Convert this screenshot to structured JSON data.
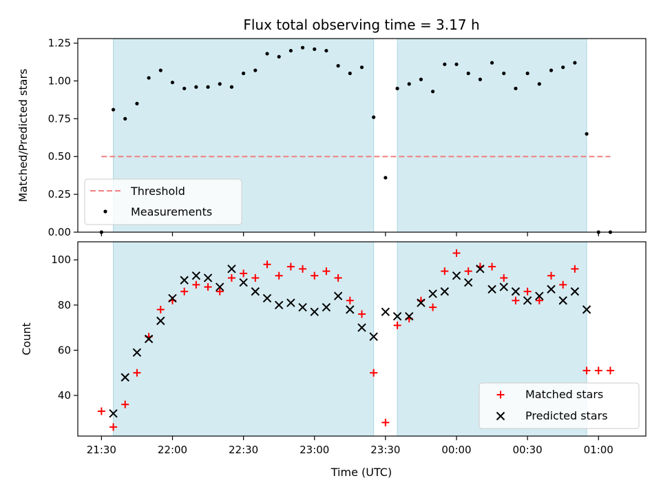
{
  "chart_data": {
    "title": "Flux total observing time = 3.17 h",
    "xlabel": "Time (UTC)",
    "x_unit": "minutes",
    "xlim": [
      "21:20",
      "01:20"
    ],
    "xtick_labels": [
      "21:30",
      "22:00",
      "22:30",
      "23:00",
      "23:30",
      "00:00",
      "00:30",
      "01:00"
    ],
    "shaded_intervals": [
      [
        "21:35",
        "23:25"
      ],
      [
        "23:35",
        "00:55"
      ]
    ],
    "shade_color": "#d4ebf1",
    "panels": [
      {
        "type": "scatter",
        "ylabel": "Matched/Predicted stars",
        "ylim": [
          0,
          1.28
        ],
        "yticks": [
          0.0,
          0.25,
          0.5,
          0.75,
          1.0,
          1.25
        ],
        "ytick_labels": [
          "0.00",
          "0.25",
          "0.50",
          "0.75",
          "1.00",
          "1.25"
        ],
        "threshold": {
          "name": "Threshold",
          "value": 0.5,
          "x_range": [
            "21:30",
            "01:05"
          ],
          "color": "#f08080"
        },
        "series": [
          {
            "name": "Measurements",
            "marker": "dot",
            "color": "#000000",
            "x": [
              "21:30",
              "21:35",
              "21:40",
              "21:45",
              "21:50",
              "21:55",
              "22:00",
              "22:05",
              "22:10",
              "22:15",
              "22:20",
              "22:25",
              "22:30",
              "22:35",
              "22:40",
              "22:45",
              "22:50",
              "22:55",
              "23:00",
              "23:05",
              "23:10",
              "23:15",
              "23:20",
              "23:25",
              "23:30",
              "23:35",
              "23:40",
              "23:45",
              "23:50",
              "23:55",
              "00:00",
              "00:05",
              "00:10",
              "00:15",
              "00:20",
              "00:25",
              "00:30",
              "00:35",
              "00:40",
              "00:45",
              "00:50",
              "00:55",
              "01:00",
              "01:05"
            ],
            "y": [
              0.0,
              0.81,
              0.75,
              0.85,
              1.02,
              1.07,
              0.99,
              0.95,
              0.96,
              0.96,
              0.98,
              0.96,
              1.05,
              1.07,
              1.18,
              1.16,
              1.2,
              1.22,
              1.21,
              1.2,
              1.1,
              1.05,
              1.09,
              0.76,
              0.36,
              0.95,
              0.98,
              1.01,
              0.93,
              1.11,
              1.11,
              1.05,
              1.01,
              1.12,
              1.05,
              0.95,
              1.05,
              0.98,
              1.07,
              1.09,
              1.12,
              0.65,
              0.0,
              0.0
            ]
          }
        ],
        "legend": {
          "position": "lower left",
          "entries": [
            "Threshold",
            "Measurements"
          ]
        }
      },
      {
        "type": "scatter",
        "ylabel": "Count",
        "ylim": [
          22,
          108
        ],
        "yticks": [
          40,
          60,
          80,
          100
        ],
        "ytick_labels": [
          "40",
          "60",
          "80",
          "100"
        ],
        "series": [
          {
            "name": "Matched stars",
            "marker": "plus",
            "color": "#ff0000",
            "x": [
              "21:30",
              "21:35",
              "21:40",
              "21:45",
              "21:50",
              "21:55",
              "22:00",
              "22:05",
              "22:10",
              "22:15",
              "22:20",
              "22:25",
              "22:30",
              "22:35",
              "22:40",
              "22:45",
              "22:50",
              "22:55",
              "23:00",
              "23:05",
              "23:10",
              "23:15",
              "23:20",
              "23:25",
              "23:30",
              "23:35",
              "23:40",
              "23:45",
              "23:50",
              "23:55",
              "00:00",
              "00:05",
              "00:10",
              "00:15",
              "00:20",
              "00:25",
              "00:30",
              "00:35",
              "00:40",
              "00:45",
              "00:50",
              "00:55",
              "01:00",
              "01:05"
            ],
            "y": [
              33,
              26,
              36,
              50,
              66,
              78,
              82,
              86,
              89,
              88,
              86,
              92,
              94,
              92,
              98,
              93,
              97,
              96,
              93,
              95,
              92,
              82,
              76,
              50,
              28,
              71,
              74,
              82,
              79,
              95,
              103,
              95,
              97,
              97,
              92,
              82,
              86,
              82,
              93,
              89,
              96,
              51,
              51,
              51
            ]
          },
          {
            "name": "Predicted stars",
            "marker": "x",
            "color": "#000000",
            "x": [
              "21:35",
              "21:40",
              "21:45",
              "21:50",
              "21:55",
              "22:00",
              "22:05",
              "22:10",
              "22:15",
              "22:20",
              "22:25",
              "22:30",
              "22:35",
              "22:40",
              "22:45",
              "22:50",
              "22:55",
              "23:00",
              "23:05",
              "23:10",
              "23:15",
              "23:20",
              "23:25",
              "23:30",
              "23:35",
              "23:40",
              "23:45",
              "23:50",
              "23:55",
              "00:00",
              "00:05",
              "00:10",
              "00:15",
              "00:20",
              "00:25",
              "00:30",
              "00:35",
              "00:40",
              "00:45",
              "00:50",
              "00:55"
            ],
            "y": [
              32,
              48,
              59,
              65,
              73,
              83,
              91,
              93,
              92,
              88,
              96,
              90,
              86,
              83,
              80,
              81,
              79,
              77,
              79,
              84,
              78,
              70,
              66,
              77,
              75,
              75,
              81,
              85,
              86,
              93,
              90,
              96,
              87,
              88,
              86,
              82,
              84,
              87,
              82,
              86,
              78
            ]
          }
        ],
        "legend": {
          "position": "lower right",
          "entries": [
            "Matched stars",
            "Predicted stars"
          ]
        }
      }
    ]
  }
}
